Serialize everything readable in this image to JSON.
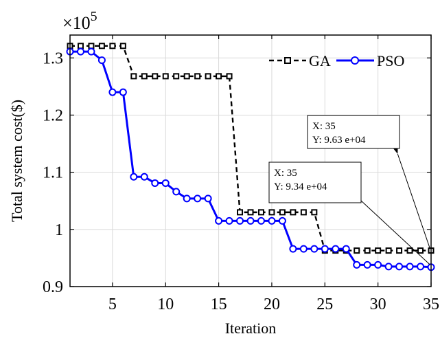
{
  "chart_data": {
    "type": "line",
    "xlabel": "Iteration",
    "ylabel": "Total system cost($)",
    "xlim": [
      1,
      35
    ],
    "ylim": [
      0.9,
      1.34
    ],
    "x_ticks": [
      5,
      10,
      15,
      20,
      25,
      30,
      35
    ],
    "x_tick_labels": [
      "5",
      "10",
      "15",
      "20",
      "25",
      "30",
      "35"
    ],
    "y_ticks": [
      0.9,
      1.0,
      1.1,
      1.2,
      1.3
    ],
    "y_tick_labels": [
      "0.9",
      "1",
      "1.1",
      "1.2",
      "1.3"
    ],
    "y_multiplier": {
      "base": "×10",
      "exponent": "5"
    },
    "grid": true,
    "legend_position": "top-right",
    "x": [
      1,
      2,
      3,
      4,
      5,
      6,
      7,
      8,
      9,
      10,
      11,
      12,
      13,
      14,
      15,
      16,
      17,
      18,
      19,
      20,
      21,
      22,
      23,
      24,
      25,
      26,
      27,
      28,
      29,
      30,
      31,
      32,
      33,
      34,
      35
    ],
    "series": [
      {
        "name": "GA",
        "color": "#000000",
        "style": "dashed",
        "marker": "square",
        "values": [
          1.321,
          1.321,
          1.321,
          1.321,
          1.321,
          1.321,
          1.268,
          1.268,
          1.268,
          1.268,
          1.268,
          1.268,
          1.268,
          1.268,
          1.268,
          1.268,
          1.03,
          1.03,
          1.03,
          1.03,
          1.03,
          1.03,
          1.03,
          1.03,
          0.963,
          0.963,
          0.963,
          0.963,
          0.963,
          0.963,
          0.963,
          0.963,
          0.963,
          0.963,
          0.963
        ]
      },
      {
        "name": "PSO",
        "color": "#0000ff",
        "style": "solid",
        "marker": "circle",
        "values": [
          1.311,
          1.311,
          1.311,
          1.296,
          1.24,
          1.24,
          1.092,
          1.092,
          1.081,
          1.081,
          1.066,
          1.054,
          1.054,
          1.054,
          1.015,
          1.015,
          1.015,
          1.015,
          1.015,
          1.015,
          1.015,
          0.966,
          0.966,
          0.966,
          0.966,
          0.966,
          0.966,
          0.938,
          0.938,
          0.938,
          0.935,
          0.935,
          0.935,
          0.935,
          0.934
        ]
      }
    ],
    "annotations": [
      {
        "x_line": "X: 35",
        "y_line": "Y: 9.63 e+04",
        "target_x": 35,
        "target_y": 0.963
      },
      {
        "x_line": "X: 35",
        "y_line": "Y: 9.34 e+04",
        "target_x": 35,
        "target_y": 0.934
      }
    ]
  }
}
